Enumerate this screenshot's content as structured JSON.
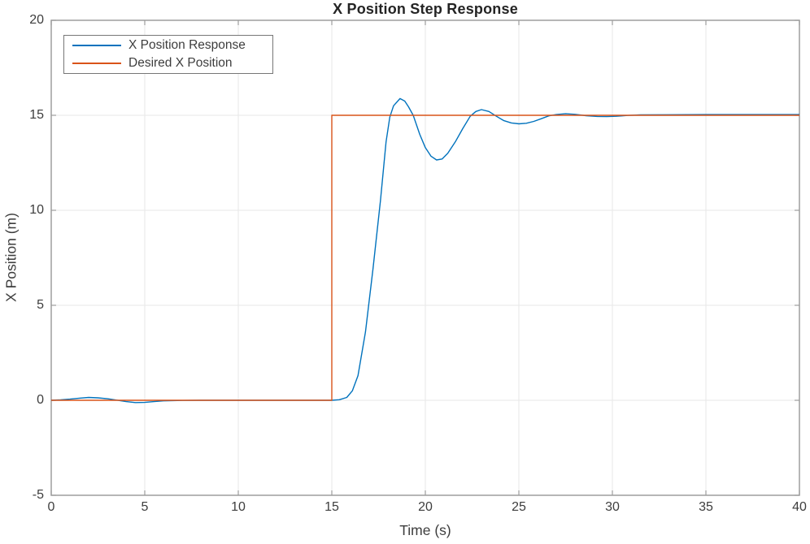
{
  "figure": {
    "background": "#ffffff"
  },
  "colors": {
    "axis_box": "#9d9d9d",
    "grid": "#e7e7e7",
    "tick_mark": "#9d9d9d",
    "tick_label": "#3d3d3d",
    "title": "#242424",
    "legend_border": "#767676",
    "response_blue": "#0072BD",
    "desired_orange": "#D95319"
  },
  "chart_data": {
    "type": "line",
    "title": "X Position Step Response",
    "xlabel": "Time (s)",
    "ylabel": "X Position (m)",
    "xlim": [
      0,
      40
    ],
    "ylim": [
      -5,
      20
    ],
    "x_ticks": [
      0,
      5,
      10,
      15,
      20,
      25,
      30,
      35,
      40
    ],
    "y_ticks": [
      -5,
      0,
      5,
      10,
      15,
      20
    ],
    "grid": true,
    "legend_position": "top-left",
    "series": [
      {
        "name": "X Position Response",
        "color": "#0072BD",
        "points": [
          [
            0,
            0
          ],
          [
            0.5,
            0.02
          ],
          [
            1,
            0.06
          ],
          [
            1.5,
            0.11
          ],
          [
            2,
            0.15
          ],
          [
            2.5,
            0.13
          ],
          [
            3,
            0.08
          ],
          [
            3.5,
            0.01
          ],
          [
            4,
            -0.07
          ],
          [
            4.5,
            -0.12
          ],
          [
            5,
            -0.11
          ],
          [
            5.5,
            -0.07
          ],
          [
            6,
            -0.03
          ],
          [
            7,
            -0.01
          ],
          [
            8,
            0
          ],
          [
            10,
            0
          ],
          [
            12,
            0
          ],
          [
            14,
            0
          ],
          [
            15,
            0
          ],
          [
            15.4,
            0.03
          ],
          [
            15.8,
            0.15
          ],
          [
            16.1,
            0.5
          ],
          [
            16.4,
            1.3
          ],
          [
            16.8,
            3.6
          ],
          [
            17.2,
            6.9
          ],
          [
            17.6,
            10.5
          ],
          [
            17.9,
            13.6
          ],
          [
            18.1,
            14.9
          ],
          [
            18.3,
            15.5
          ],
          [
            18.65,
            15.88
          ],
          [
            18.9,
            15.75
          ],
          [
            19.1,
            15.45
          ],
          [
            19.35,
            15.0
          ],
          [
            19.7,
            14.0
          ],
          [
            20,
            13.3
          ],
          [
            20.3,
            12.85
          ],
          [
            20.6,
            12.65
          ],
          [
            20.9,
            12.7
          ],
          [
            21.2,
            13.0
          ],
          [
            21.6,
            13.6
          ],
          [
            22,
            14.3
          ],
          [
            22.4,
            14.95
          ],
          [
            22.7,
            15.2
          ],
          [
            23,
            15.3
          ],
          [
            23.4,
            15.2
          ],
          [
            23.8,
            14.95
          ],
          [
            24.2,
            14.72
          ],
          [
            24.6,
            14.6
          ],
          [
            25,
            14.55
          ],
          [
            25.4,
            14.58
          ],
          [
            25.8,
            14.68
          ],
          [
            26.2,
            14.82
          ],
          [
            26.6,
            14.97
          ],
          [
            27,
            15.04
          ],
          [
            27.5,
            15.08
          ],
          [
            28,
            15.05
          ],
          [
            28.6,
            14.98
          ],
          [
            29.2,
            14.94
          ],
          [
            29.7,
            14.93
          ],
          [
            30.2,
            14.95
          ],
          [
            30.8,
            14.99
          ],
          [
            31.5,
            15.02
          ],
          [
            33,
            15.03
          ],
          [
            35,
            15.04
          ],
          [
            37,
            15.04
          ],
          [
            40,
            15.04
          ]
        ]
      },
      {
        "name": "Desired X Position",
        "color": "#D95319",
        "points": [
          [
            0,
            0
          ],
          [
            15,
            0
          ],
          [
            15,
            15
          ],
          [
            40,
            15
          ]
        ]
      }
    ]
  }
}
